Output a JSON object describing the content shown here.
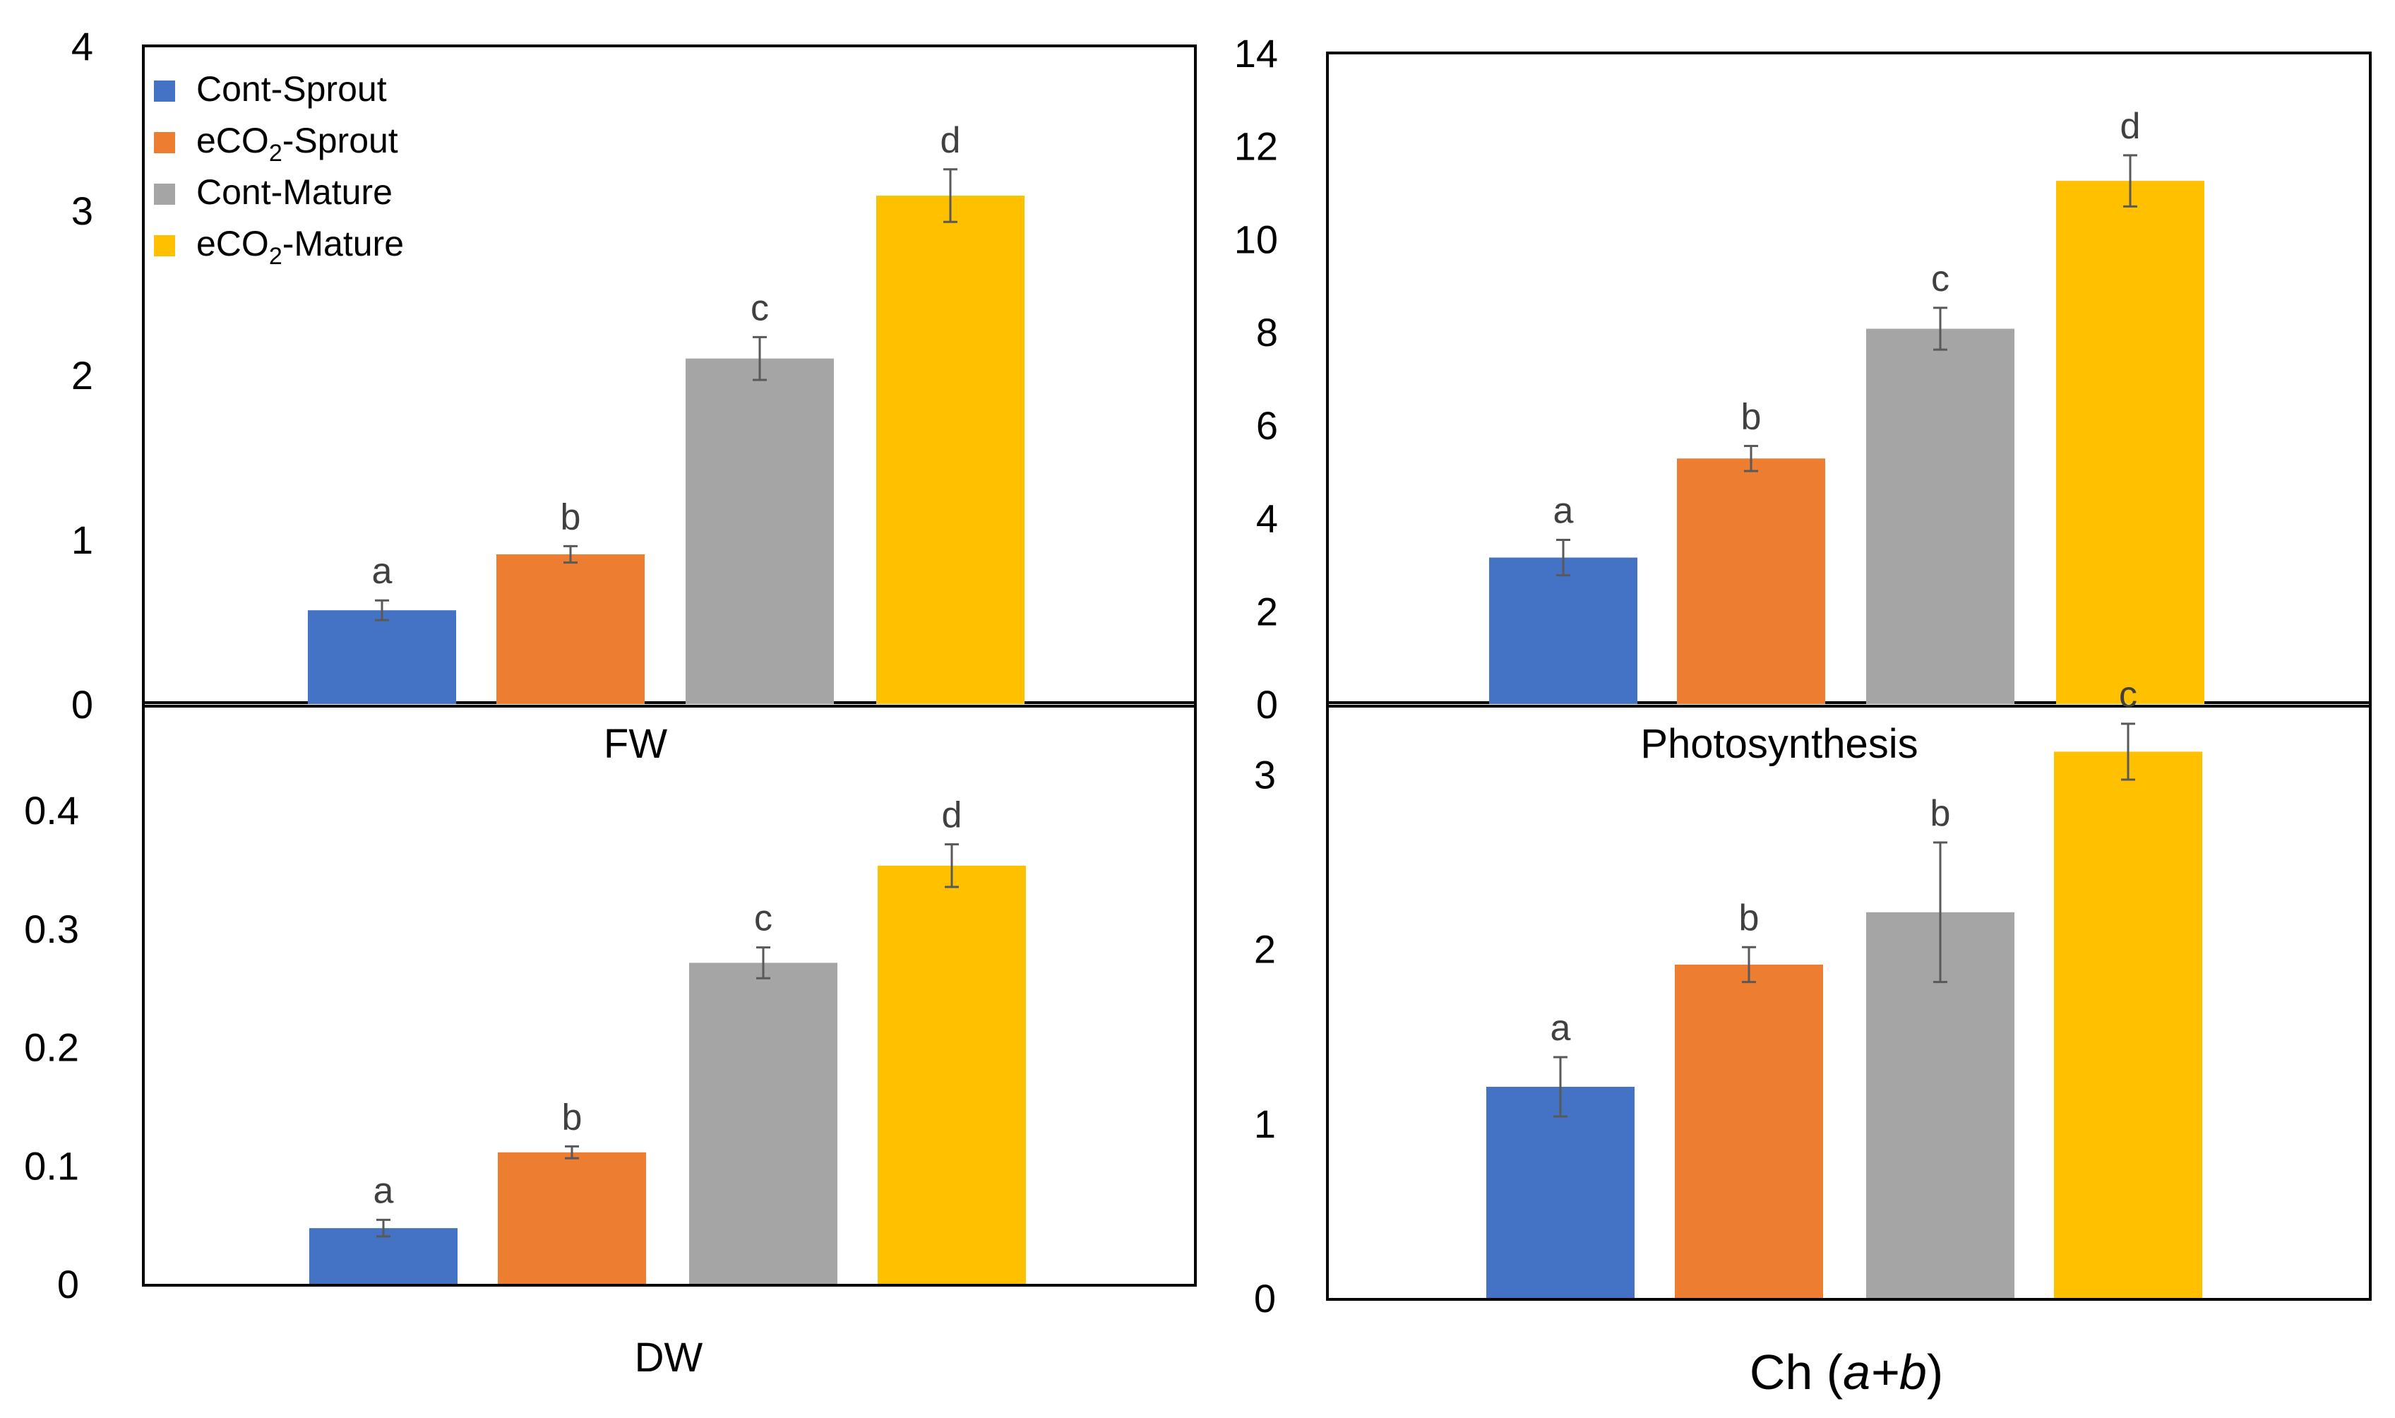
{
  "colors": {
    "cont_sprout": "#4472C4",
    "eco2_sprout": "#ED7D31",
    "cont_mature": "#A5A5A5",
    "eco2_mature": "#FFC000",
    "axis": "#000000",
    "error_bar": "#595959",
    "letters": "#404040"
  },
  "legend": {
    "placement": "top-left inside FW panel",
    "items": [
      {
        "label": "Cont-Sprout",
        "sub": "",
        "suffix": "",
        "color_key": "cont_sprout"
      },
      {
        "label": "eCO",
        "sub": "2",
        "suffix": "-Sprout",
        "color_key": "eco2_sprout"
      },
      {
        "label": "Cont-Mature",
        "sub": "",
        "suffix": "",
        "color_key": "cont_mature"
      },
      {
        "label": "eCO",
        "sub": "2",
        "suffix": "-Mature",
        "color_key": "eco2_mature"
      }
    ]
  },
  "chart_data": [
    {
      "type": "bar",
      "title": "",
      "xlabel": "FW",
      "ylabel": "",
      "ylim": [
        0,
        4
      ],
      "yticks": [
        "0",
        "1",
        "2",
        "3",
        "4"
      ],
      "grid": false,
      "series": [
        {
          "value": 0.57,
          "error": 0.06,
          "letter": "a"
        },
        {
          "value": 0.91,
          "error": 0.05,
          "letter": "b"
        },
        {
          "value": 2.1,
          "error": 0.13,
          "letter": "c"
        },
        {
          "value": 3.09,
          "error": 0.16,
          "letter": "d"
        }
      ]
    },
    {
      "type": "bar",
      "title": "",
      "xlabel": "Photosynthesis",
      "ylabel": "",
      "ylim": [
        0,
        14
      ],
      "yticks": [
        "0",
        "2",
        "4",
        "6",
        "8",
        "10",
        "12",
        "14"
      ],
      "grid": false,
      "series": [
        {
          "value": 3.15,
          "error": 0.38,
          "letter": "a"
        },
        {
          "value": 5.28,
          "error": 0.27,
          "letter": "b"
        },
        {
          "value": 8.07,
          "error": 0.45,
          "letter": "c"
        },
        {
          "value": 11.25,
          "error": 0.55,
          "letter": "d"
        }
      ]
    },
    {
      "type": "bar",
      "title": "",
      "xlabel": "DW",
      "ylabel": "",
      "ylim": [
        0,
        0.4
      ],
      "yticks": [
        "0",
        "0.1",
        "0.2",
        "0.3",
        "0.4"
      ],
      "grid": false,
      "series": [
        {
          "value": 0.047,
          "error": 0.007,
          "letter": "a"
        },
        {
          "value": 0.111,
          "error": 0.005,
          "letter": "b"
        },
        {
          "value": 0.271,
          "error": 0.013,
          "letter": "c"
        },
        {
          "value": 0.353,
          "error": 0.018,
          "letter": "d"
        }
      ]
    },
    {
      "type": "bar",
      "title": "",
      "xlabel": "Ch (a+b)",
      "ylabel": "",
      "ylim": [
        0,
        3.5
      ],
      "yticks": [
        "0",
        "1",
        "2",
        "3"
      ],
      "grid": false,
      "series": [
        {
          "value": 1.21,
          "error": 0.17,
          "letter": "a"
        },
        {
          "value": 1.91,
          "error": 0.1,
          "letter": "b"
        },
        {
          "value": 2.21,
          "error": 0.4,
          "letter": "b"
        },
        {
          "value": 3.13,
          "error": 0.16,
          "letter": "c"
        }
      ]
    }
  ],
  "xlabel_parts_ch": {
    "prefix": "Ch (",
    "a": "a",
    "plus": "+",
    "b": "b",
    "suffix": ")"
  }
}
